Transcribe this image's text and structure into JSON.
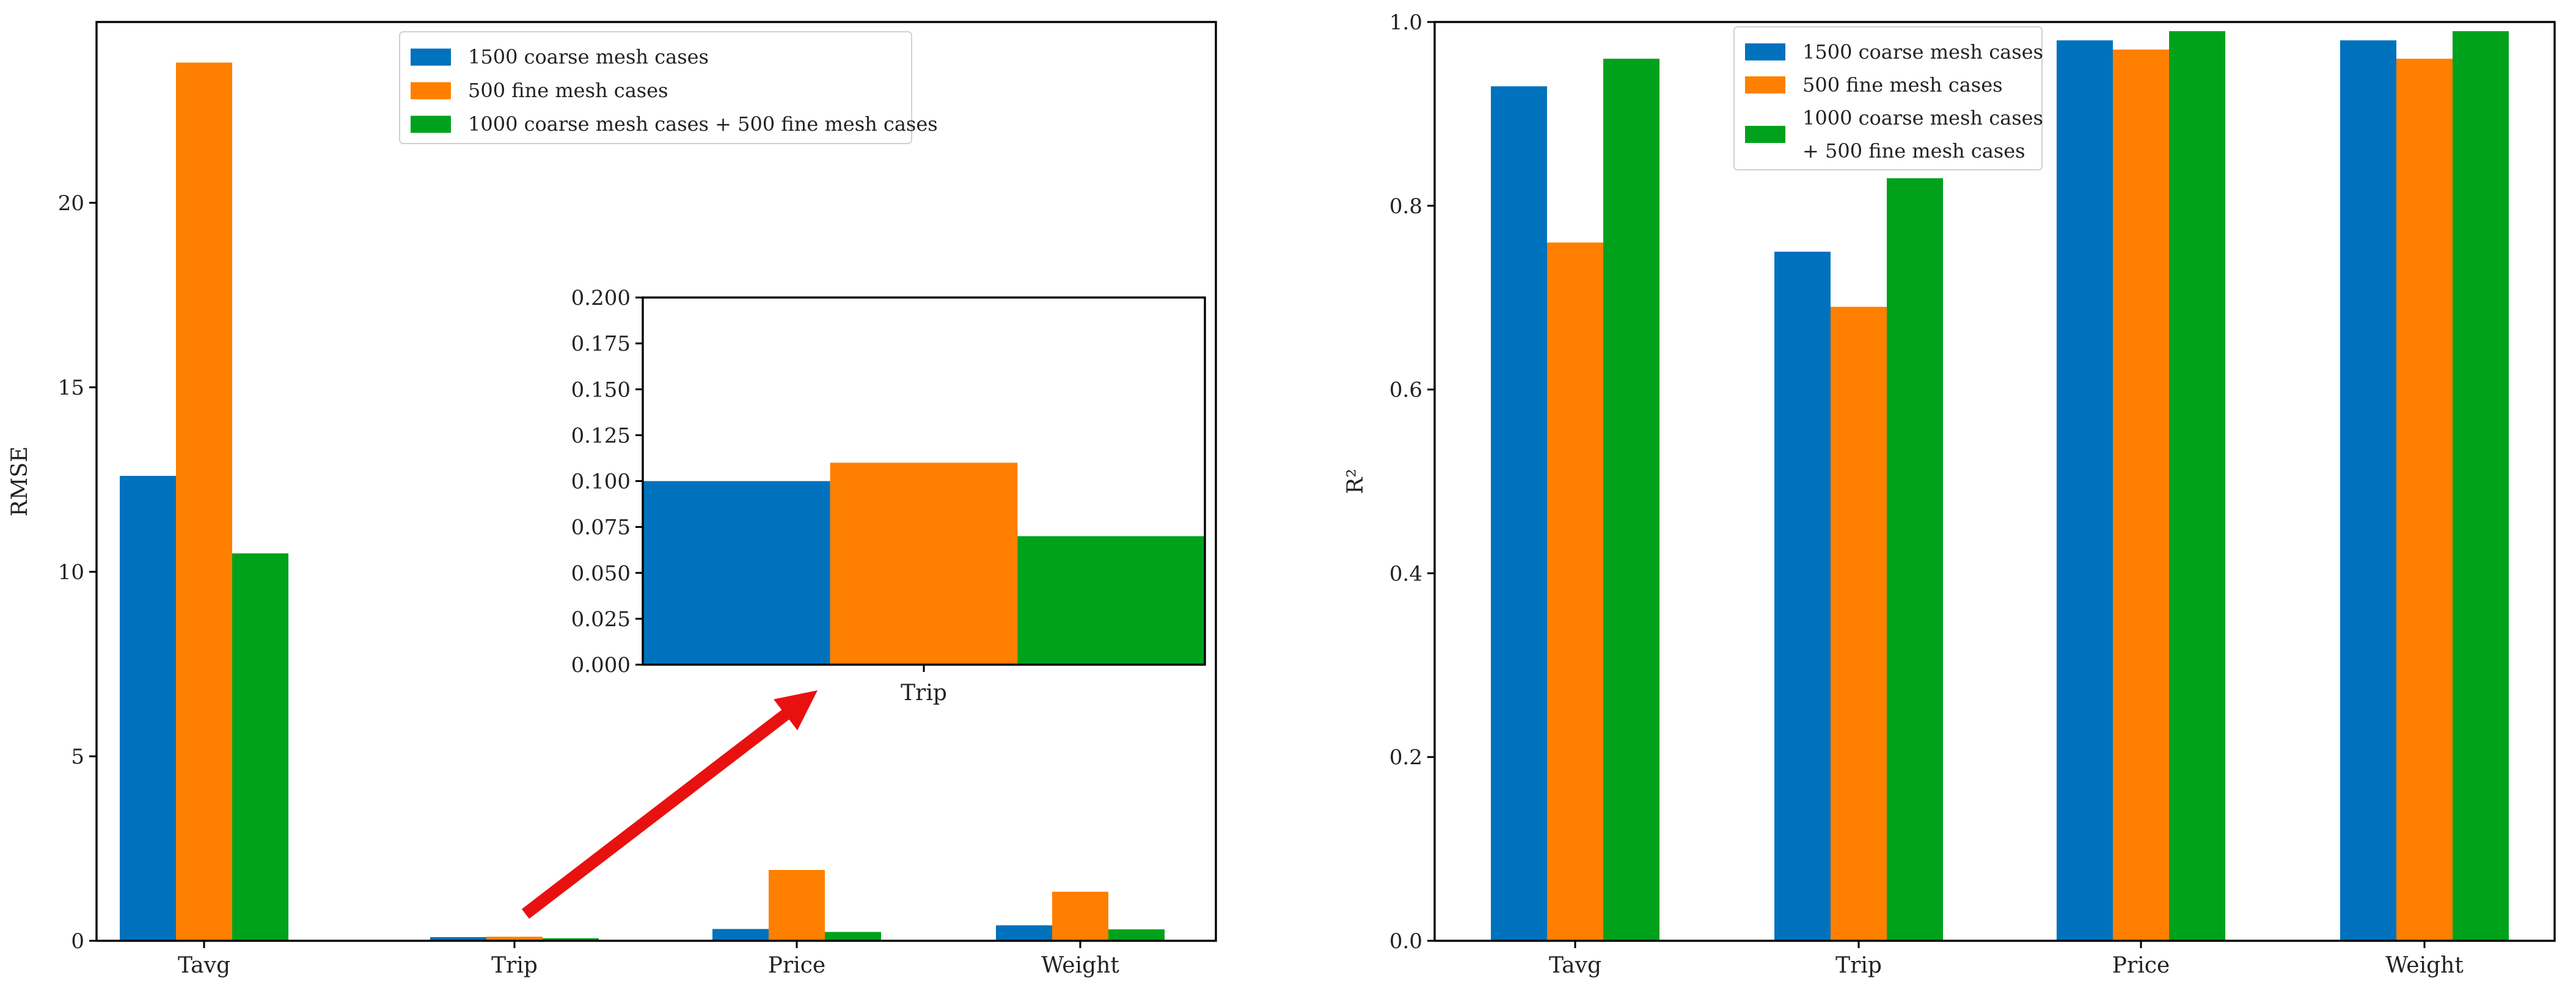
{
  "colors": {
    "coarse": "#0072bd",
    "fine": "#ff7f00",
    "combo": "#00a21c",
    "arrow": "#e8110f"
  },
  "chart_data": [
    {
      "id": "rmse",
      "type": "bar",
      "categories": [
        "Tavg",
        "Trip",
        "Price",
        "Weight"
      ],
      "series": [
        {
          "name": "1500 coarse mesh cases",
          "values": [
            12.6,
            0.1,
            0.32,
            0.42
          ]
        },
        {
          "name": "500 fine mesh cases",
          "values": [
            23.8,
            0.11,
            1.92,
            1.33
          ]
        },
        {
          "name": "1000 coarse mesh cases + 500 fine mesh cases",
          "values": [
            10.5,
            0.07,
            0.24,
            0.31
          ]
        }
      ],
      "legend_lines": [
        [
          "1500 coarse mesh cases"
        ],
        [
          "500 fine mesh cases"
        ],
        [
          "1000 coarse mesh cases + 500 fine mesh cases"
        ]
      ],
      "xlabel": "",
      "ylabel": "RMSE",
      "ylim": [
        0,
        24.9
      ],
      "yticks": [
        0,
        5,
        10,
        15,
        20
      ],
      "legend": "top-center",
      "grid": false,
      "inset": {
        "type": "bar",
        "categories": [
          "Trip"
        ],
        "series": [
          {
            "name": "1500 coarse mesh cases",
            "values": [
              0.1
            ]
          },
          {
            "name": "500 fine mesh cases",
            "values": [
              0.11
            ]
          },
          {
            "name": "1000 coarse mesh cases + 500 fine mesh cases",
            "values": [
              0.07
            ]
          }
        ],
        "ylim": [
          0,
          0.2
        ],
        "yticks": [
          "0.000",
          "0.025",
          "0.050",
          "0.075",
          "0.100",
          "0.125",
          "0.150",
          "0.175",
          "0.200"
        ]
      }
    },
    {
      "id": "r2",
      "type": "bar",
      "categories": [
        "Tavg",
        "Trip",
        "Price",
        "Weight"
      ],
      "series": [
        {
          "name": "1500 coarse mesh cases",
          "values": [
            0.93,
            0.75,
            0.98,
            0.98
          ]
        },
        {
          "name": "500 fine mesh cases",
          "values": [
            0.76,
            0.69,
            0.97,
            0.96
          ]
        },
        {
          "name": "1000 coarse mesh cases + 500 fine mesh cases",
          "values": [
            0.96,
            0.83,
            0.99,
            0.99
          ]
        }
      ],
      "legend_lines": [
        [
          "1500 coarse mesh cases"
        ],
        [
          "500 fine mesh cases"
        ],
        [
          "1000 coarse mesh cases",
          "+ 500 fine mesh cases"
        ]
      ],
      "xlabel": "",
      "ylabel": "R²",
      "ylim": [
        0,
        1.0
      ],
      "yticks": [
        "0.0",
        "0.2",
        "0.4",
        "0.6",
        "0.8",
        "1.0"
      ],
      "legend": "top-center",
      "grid": false
    }
  ]
}
